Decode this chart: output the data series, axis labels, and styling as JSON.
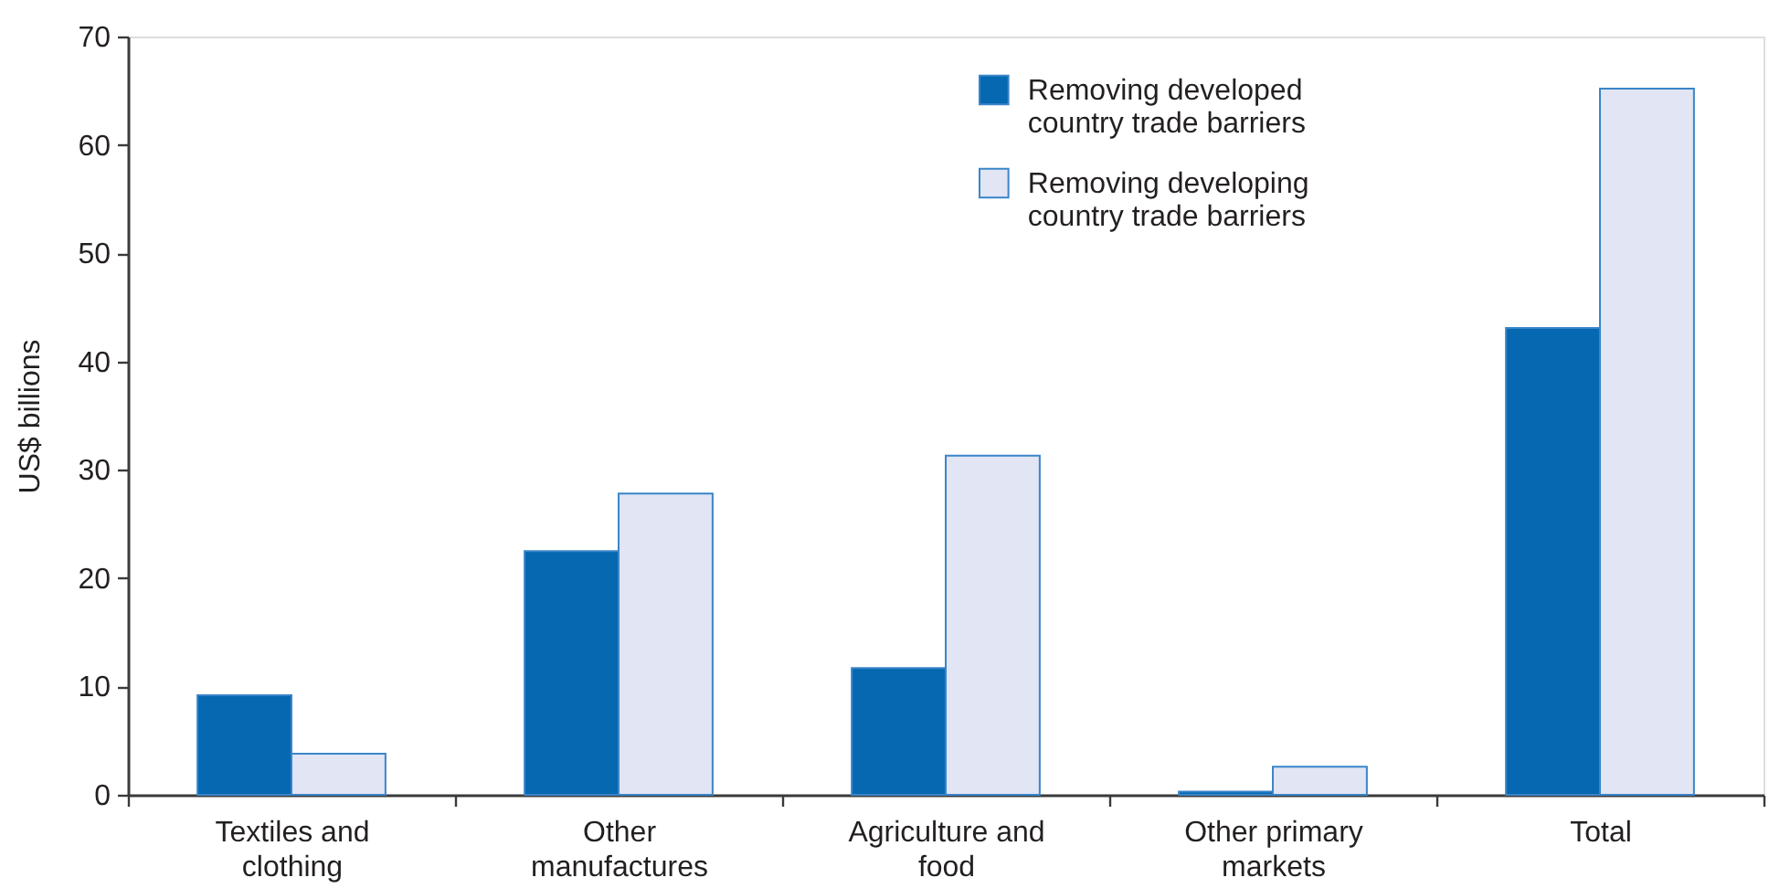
{
  "chart_data": {
    "type": "bar",
    "categories": [
      "Textiles and clothing",
      "Other manufactures",
      "Agriculture and food",
      "Other primary markets",
      "Total"
    ],
    "ylabel": "US$ billions",
    "ylim": [
      0,
      70
    ],
    "yticks": [
      0,
      10,
      20,
      30,
      40,
      50,
      60,
      70
    ],
    "grid": false,
    "legend": "top right",
    "series": [
      {
        "name": "Removing developed country trade barriers",
        "color": "#0568b1",
        "values": [
          9.2,
          22.5,
          11.7,
          0.3,
          43.1
        ]
      },
      {
        "name": "Removing developing country trade barriers",
        "color": "#e1e5f4",
        "values": [
          3.8,
          27.8,
          31.3,
          2.6,
          65.2
        ]
      }
    ]
  }
}
